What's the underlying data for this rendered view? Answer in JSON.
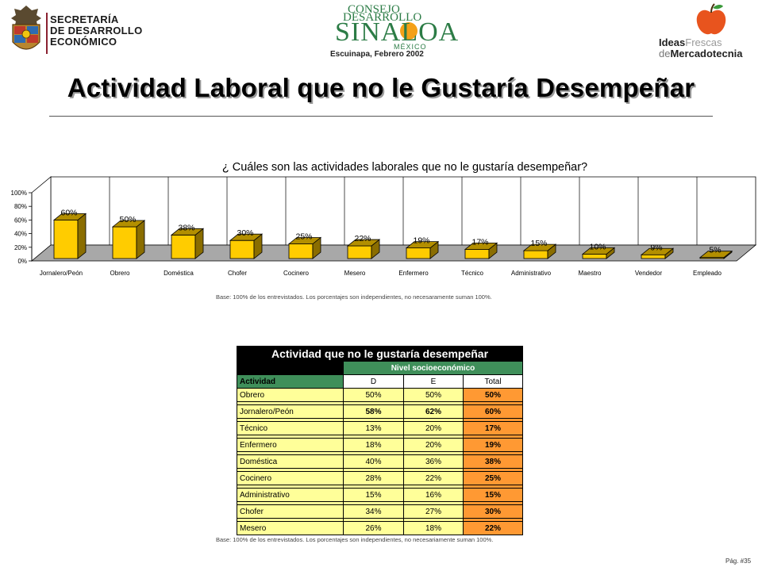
{
  "header": {
    "left_logo_lines": [
      "SECRETARÍA",
      "DE DESARROLLO",
      "ECONÓMICO"
    ],
    "center_logo": {
      "line1": "CONSEJO",
      "line2": "DESARROLLO",
      "line3": "SINALOA",
      "line4": "MÉXICO"
    },
    "place_date": "Escuinapa, Febrero 2002",
    "right_logo": {
      "ideas": "Ideas",
      "frescas": "Frescas",
      "de": "de",
      "mercadotecnia": "Mercadotecnia"
    }
  },
  "page_title": "Actividad Laboral que no le Gustaría Desempeñar",
  "chart_data": {
    "type": "bar",
    "title": "¿ Cuáles son las actividades laborales que no le gustaría desempeñar?",
    "categories": [
      "Jornalero/Peón",
      "Obrero",
      "Doméstica",
      "Chofer",
      "Cocinero",
      "Mesero",
      "Enfermero",
      "Técnico",
      "Administrativo",
      "Maestro",
      "Vendedor",
      "Empleado"
    ],
    "values": [
      60,
      50,
      38,
      30,
      25,
      22,
      19,
      17,
      15,
      10,
      9,
      5
    ],
    "data_labels": [
      "60%",
      "50%",
      "38%",
      "30%",
      "25%",
      "22%",
      "19%",
      "17%",
      "15%",
      "10%",
      "9%",
      "5%"
    ],
    "ylim": [
      0,
      100
    ],
    "yticks": [
      0,
      20,
      40,
      60,
      80,
      100
    ],
    "ytick_labels": [
      "0%",
      "20%",
      "40%",
      "60%",
      "80%",
      "100%"
    ],
    "xlabel": "",
    "ylabel": "",
    "grid": "vertical category gridlines",
    "bar_color": "#ffcc00",
    "style": "3d"
  },
  "chart_base_note": "Base:   100% de los entrevistados. Los porcentajes son independientes, no necesaramente suman 100%.",
  "table": {
    "title": "Actividad que no le gustaría desempeñar",
    "group_header": "Nivel socioeconómico",
    "col_label": "Actividad",
    "columns": [
      "D",
      "E",
      "Total"
    ],
    "rows": [
      {
        "label": "Obrero",
        "D": "50%",
        "E": "50%",
        "Total": "50%",
        "bold": false
      },
      {
        "label": "Jornalero/Peón",
        "D": "58%",
        "E": "62%",
        "Total": "60%",
        "bold": true
      },
      {
        "label": "Técnico",
        "D": "13%",
        "E": "20%",
        "Total": "17%",
        "bold": false
      },
      {
        "label": "Enfermero",
        "D": "18%",
        "E": "20%",
        "Total": "19%",
        "bold": false
      },
      {
        "label": "Doméstica",
        "D": "40%",
        "E": "36%",
        "Total": "38%",
        "bold": false
      },
      {
        "label": "Cocinero",
        "D": "28%",
        "E": "22%",
        "Total": "25%",
        "bold": false
      },
      {
        "label": "Administrativo",
        "D": "15%",
        "E": "16%",
        "Total": "15%",
        "bold": false
      },
      {
        "label": "Chofer",
        "D": "34%",
        "E": "27%",
        "Total": "30%",
        "bold": false
      },
      {
        "label": "Mesero",
        "D": "26%",
        "E": "18%",
        "Total": "22%",
        "bold": false
      }
    ],
    "colors": {
      "header_green": "#3f8f5a",
      "cell_yellow": "#ffff99",
      "total_orange": "#ff9933"
    }
  },
  "table_base_note": "Base:   100% de los entrevistados. Los porcentajes son  independientes, no necesariamente suman 100%.",
  "page_number": "Pág. #35"
}
